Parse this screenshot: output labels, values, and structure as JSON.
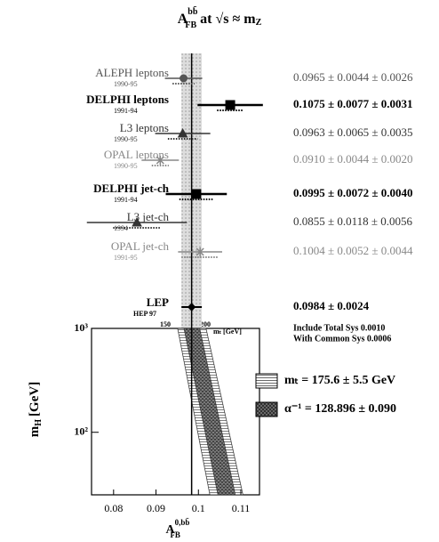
{
  "chart_data": {
    "type": "errorbar",
    "title": {
      "main": "A",
      "sub": "FB",
      "sup": "bb̄",
      "text": "at √s ≈ m",
      "text_sub": "Z"
    },
    "measurements": [
      {
        "name": "ALEPH leptons",
        "period": "1990-95",
        "value": 0.0965,
        "stat": 0.0044,
        "sys": 0.0026,
        "value_label": "0.0965 ± 0.0044 ± 0.0026",
        "marker": "circle",
        "color": "#555555",
        "bold": false
      },
      {
        "name": "DELPHI leptons",
        "period": "1991-94",
        "value": 0.1075,
        "stat": 0.0077,
        "sys": 0.0031,
        "value_label": "0.1075 ± 0.0077 ± 0.0031",
        "marker": "square",
        "color": "#000000",
        "bold": true
      },
      {
        "name": "L3 leptons",
        "period": "1990-95",
        "value": 0.0963,
        "stat": 0.0065,
        "sys": 0.0035,
        "value_label": "0.0963 ± 0.0065 ± 0.0035",
        "marker": "triangle",
        "color": "#333333",
        "bold": false
      },
      {
        "name": "OPAL leptons",
        "period": "1990-95",
        "value": 0.091,
        "stat": 0.0044,
        "sys": 0.002,
        "value_label": "0.0910 ± 0.0044 ± 0.0020",
        "marker": "star",
        "color": "#888888",
        "bold": false
      },
      {
        "name": "DELPHI jet-ch",
        "period": "1991-94",
        "value": 0.0995,
        "stat": 0.0072,
        "sys": 0.004,
        "value_label": "0.0995 ± 0.0072 ± 0.0040",
        "marker": "square",
        "color": "#000000",
        "bold": true
      },
      {
        "name": "L3 jet-ch",
        "period": "1994",
        "value": 0.0855,
        "stat": 0.0118,
        "sys": 0.0056,
        "value_label": "0.0855 ± 0.0118 ± 0.0056",
        "marker": "triangle",
        "color": "#333333",
        "bold": false
      },
      {
        "name": "OPAL jet-ch",
        "period": "1991-95",
        "value": 0.1004,
        "stat": 0.0052,
        "sys": 0.0044,
        "value_label": "0.1004 ± 0.0052 ± 0.0044",
        "marker": "star",
        "color": "#888888",
        "bold": false
      }
    ],
    "average": {
      "name": "LEP",
      "period": "HEP 97",
      "value": 0.0984,
      "error": 0.0024,
      "value_label": "0.0984 ± 0.0024"
    },
    "notes": [
      "Include Total Sys 0.0010",
      "With Common Sys 0.0006"
    ],
    "xlabel": {
      "main": "A",
      "sub": "FB",
      "sup": "0,bb̄"
    },
    "ylabel": {
      "main": "m",
      "sub": "H",
      "unit": "[GeV]"
    },
    "xlim": [
      0.0748,
      0.1144
    ],
    "xticks": [
      0.08,
      0.09,
      0.1,
      0.11
    ],
    "ylim": [
      25,
      1000
    ],
    "yticks": [
      {
        "value": 1000,
        "label": "10³"
      },
      {
        "value": 100,
        "label": "10²"
      }
    ],
    "log_y": true,
    "mt_labels": [
      "150",
      "200",
      "mₜ [GeV]"
    ],
    "mh": [
      1000,
      25
    ],
    "bands": [
      {
        "name": "mₜ = 175.6 ± 5.5 GeV",
        "lower": [
          0.0951,
          0.1027
        ],
        "upper": [
          0.1018,
          0.1105
        ],
        "pattern": "lines"
      },
      {
        "name": "α⁻¹ = 128.896 ± 0.090",
        "lower": [
          0.0966,
          0.1046
        ],
        "upper": [
          0.1003,
          0.1087
        ],
        "pattern": "cross"
      }
    ]
  }
}
